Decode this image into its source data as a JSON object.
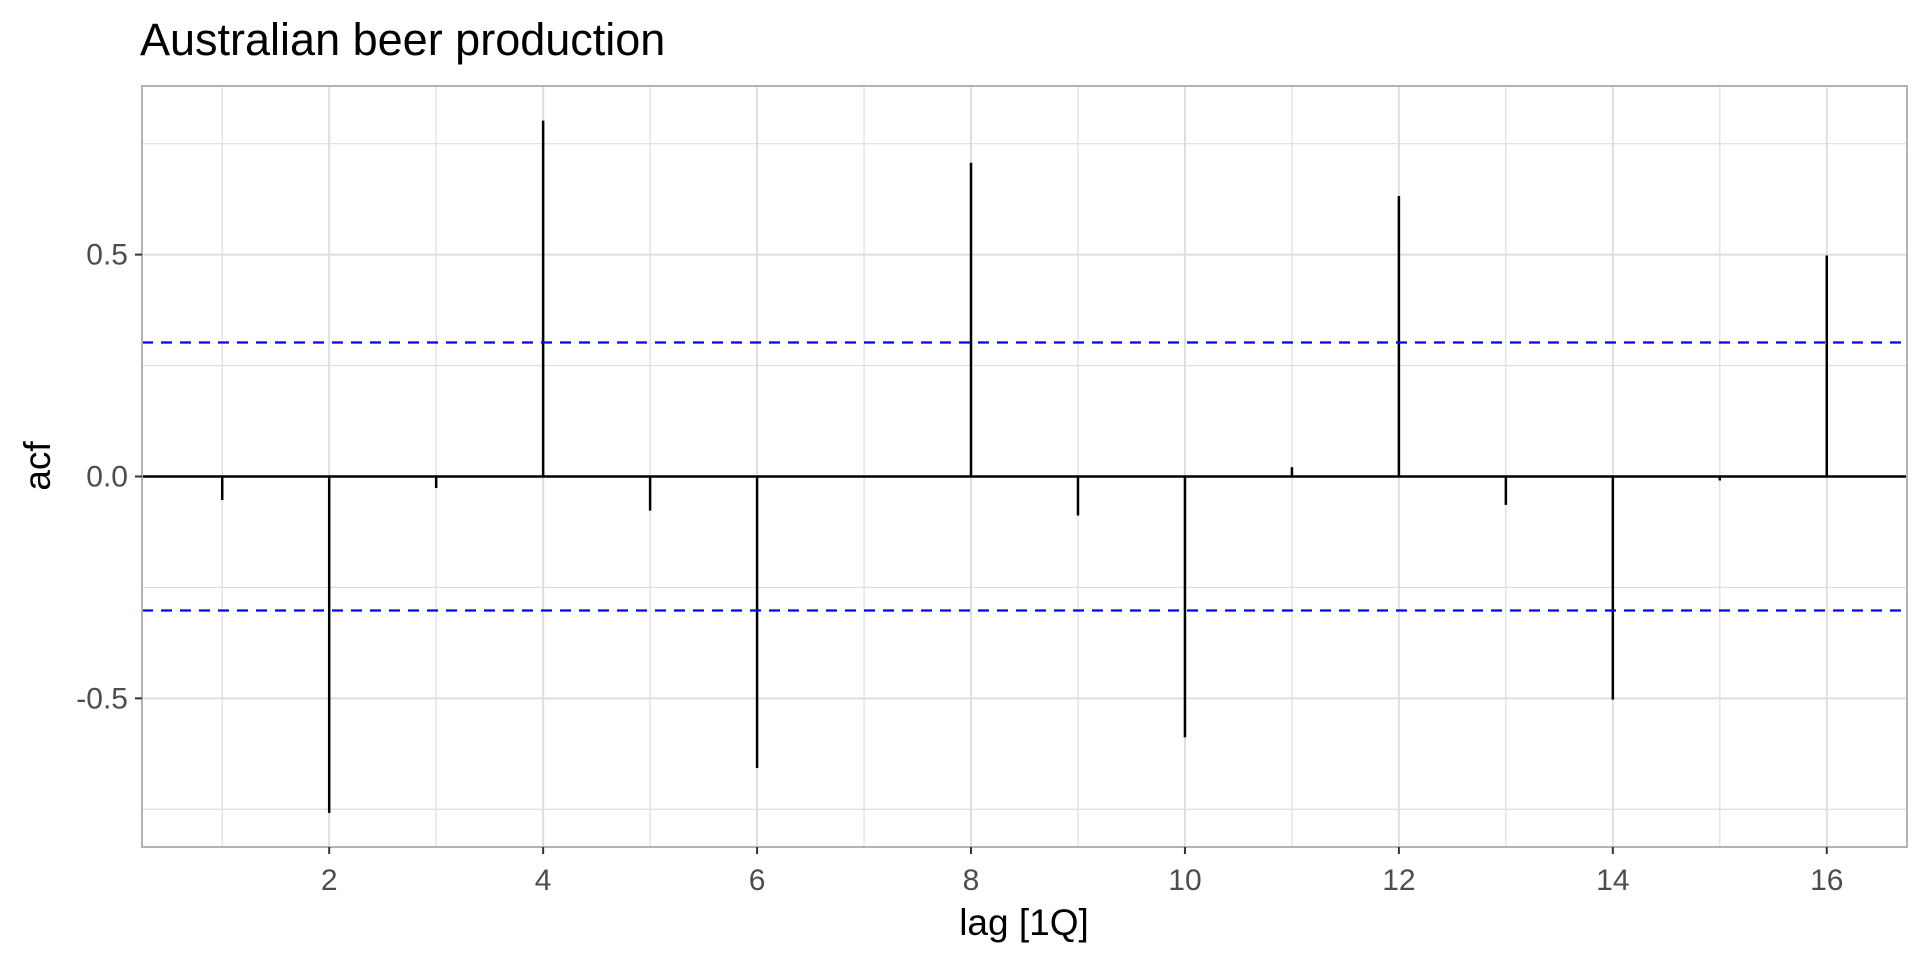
{
  "chart_data": {
    "type": "bar",
    "title": "Australian beer production",
    "xlabel": "lag [1Q]",
    "ylabel": "acf",
    "lags": [
      1,
      2,
      3,
      4,
      5,
      6,
      7,
      8,
      9,
      10,
      11,
      12,
      13,
      14,
      15,
      16
    ],
    "values": [
      -0.053,
      -0.758,
      -0.026,
      0.802,
      -0.077,
      -0.657,
      0.001,
      0.707,
      -0.088,
      -0.588,
      0.021,
      0.632,
      -0.064,
      -0.503,
      -0.009,
      0.498
    ],
    "confidence_bound": 0.302,
    "xlim": [
      0.25,
      16.75
    ],
    "ylim": [
      -0.835,
      0.88
    ],
    "xticks": [
      2,
      4,
      6,
      8,
      10,
      12,
      14,
      16
    ],
    "xtick_labels": [
      "2",
      "4",
      "6",
      "8",
      "10",
      "12",
      "14",
      "16"
    ],
    "yticks": [
      0.5,
      0.0,
      -0.5
    ],
    "ytick_labels": [
      "0.5",
      "0.0",
      "-0.5"
    ],
    "grid": true,
    "colors": {
      "bars": "#000000",
      "confidence_lines": "#0000ff",
      "grid": "#dedede",
      "panel_border": "#b3b3b3"
    }
  }
}
